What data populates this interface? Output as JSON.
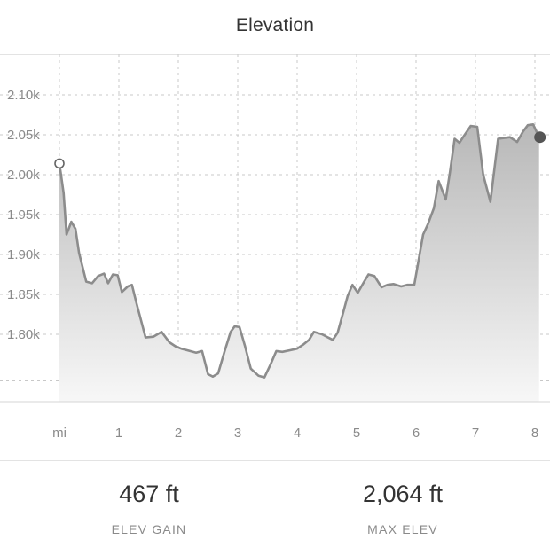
{
  "header": {
    "title": "Elevation"
  },
  "chart_data": {
    "type": "area",
    "x_unit_label": "mi",
    "x_ticks": [
      1,
      2,
      3,
      4,
      5,
      6,
      7,
      8
    ],
    "y_ticks": [
      1800,
      1850,
      1900,
      1950,
      2000,
      2050,
      2100
    ],
    "y_tick_labels": [
      "1.80k",
      "1.85k",
      "1.90k",
      "1.95k",
      "2.00k",
      "2.05k",
      "2.10k"
    ],
    "xlim": [
      0,
      8.1
    ],
    "ylim": [
      1705,
      2150
    ],
    "grid": true,
    "start_marker": "hollow",
    "end_marker": "filled",
    "colors": {
      "line": "#8c8c8c",
      "fill_top": "#b8b8b8",
      "fill_bottom": "#f7f7f7",
      "grid": "#c8c8c8"
    },
    "x": [
      0,
      0.07,
      0.12,
      0.2,
      0.27,
      0.33,
      0.45,
      0.55,
      0.65,
      0.75,
      0.82,
      0.9,
      0.98,
      1.05,
      1.15,
      1.22,
      1.3,
      1.45,
      1.58,
      1.72,
      1.85,
      1.95,
      2.05,
      2.15,
      2.3,
      2.4,
      2.5,
      2.58,
      2.67,
      2.78,
      2.88,
      2.95,
      3.03,
      3.12,
      3.22,
      3.35,
      3.45,
      3.55,
      3.65,
      3.75,
      3.88,
      4.0,
      4.1,
      4.2,
      4.28,
      4.42,
      4.52,
      4.6,
      4.68,
      4.78,
      4.85,
      4.93,
      5.02,
      5.12,
      5.2,
      5.3,
      5.42,
      5.52,
      5.62,
      5.75,
      5.85,
      5.97,
      6.12,
      6.2,
      6.3,
      6.38,
      6.5,
      6.57,
      6.65,
      6.73,
      6.8,
      6.92,
      7.03,
      7.13,
      7.25,
      7.38,
      7.48,
      7.58,
      7.7,
      7.8,
      7.88,
      7.97,
      8.07
    ],
    "y": [
      2014,
      1977,
      1925,
      1941,
      1932,
      1902,
      1866,
      1864,
      1873,
      1876,
      1864,
      1875,
      1874,
      1853,
      1860,
      1862,
      1838,
      1796,
      1797,
      1803,
      1790,
      1785,
      1782,
      1780,
      1777,
      1779,
      1750,
      1747,
      1751,
      1779,
      1803,
      1810,
      1809,
      1786,
      1757,
      1748,
      1746,
      1762,
      1779,
      1778,
      1780,
      1782,
      1787,
      1793,
      1803,
      1800,
      1796,
      1793,
      1802,
      1829,
      1848,
      1862,
      1852,
      1865,
      1875,
      1873,
      1859,
      1862,
      1863,
      1860,
      1862,
      1862,
      1925,
      1938,
      1958,
      1992,
      1969,
      2003,
      2045,
      2040,
      2048,
      2061,
      2060,
      2000,
      1966,
      2045,
      2046,
      2047,
      2041,
      2054,
      2062,
      2063,
      2047
    ]
  },
  "stats": {
    "gain_value": "467 ft",
    "gain_label": "ELEV GAIN",
    "max_value": "2,064 ft",
    "max_label": "MAX ELEV"
  }
}
